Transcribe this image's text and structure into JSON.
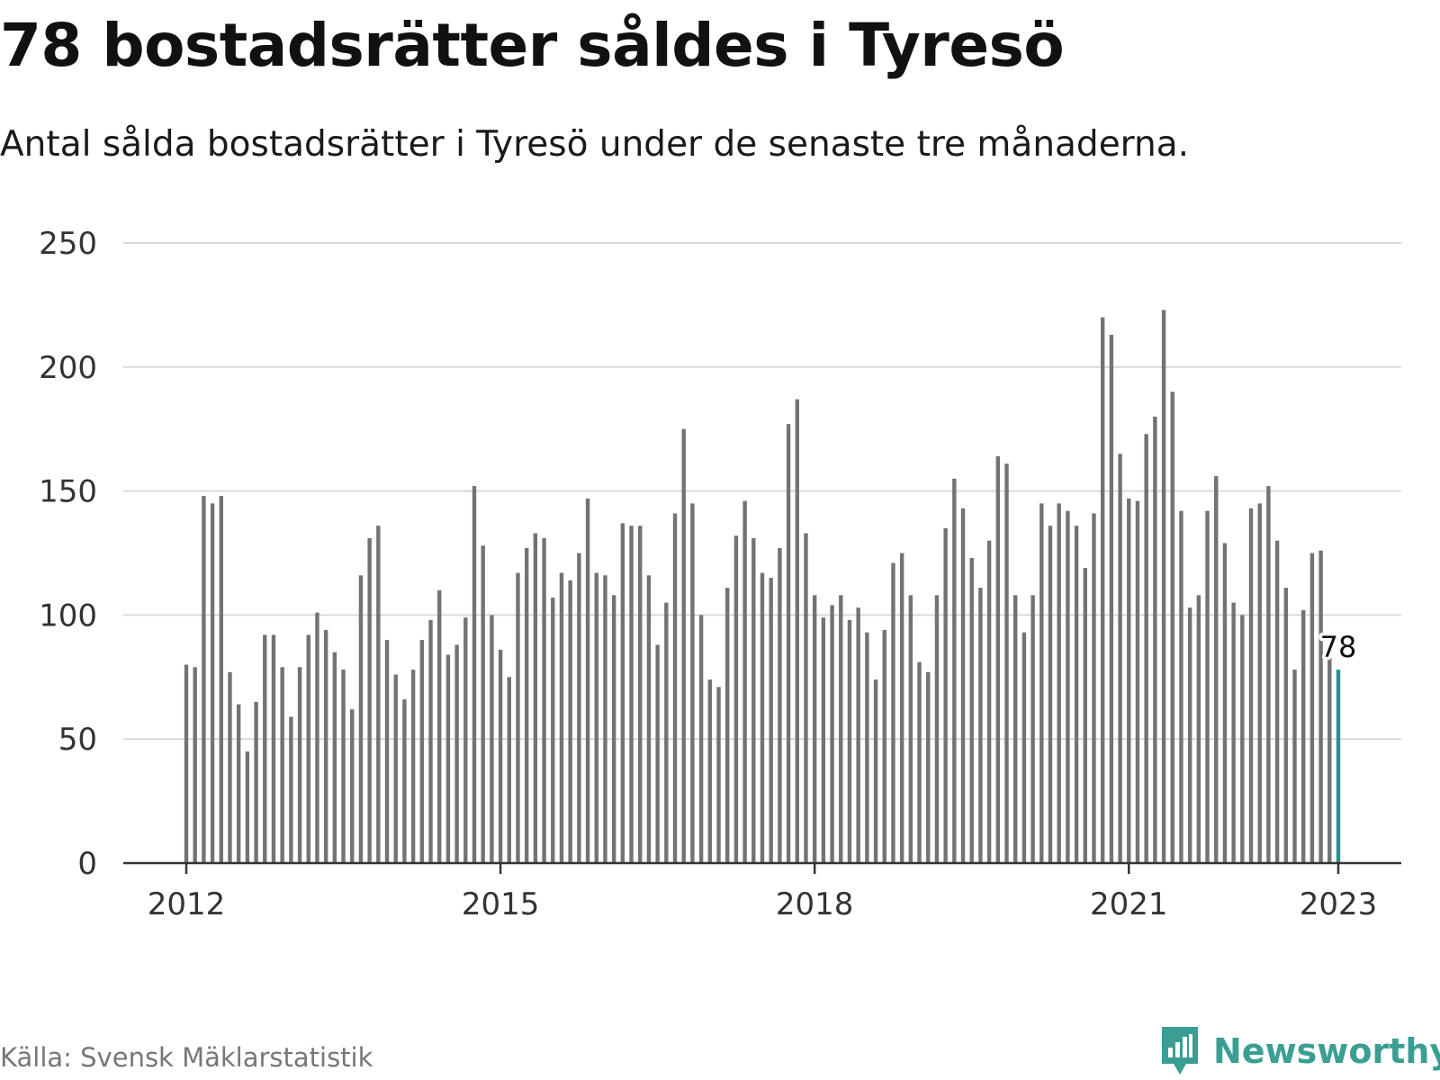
{
  "header": {
    "title": "78 bostadsrätter såldes i Tyresö",
    "subtitle": "Antal sålda bostadsrätter i Tyresö under de senaste tre månaderna."
  },
  "footer": {
    "source": "Källa: Svensk Mäklarstatistik",
    "brand": "Newsworthy",
    "brand_icon": "bar-chart-logo-icon"
  },
  "colors": {
    "bar": "#737373",
    "highlight": "#1a9a8e",
    "grid": "#d9d9d9",
    "axis": "#333333",
    "brand": "#3a9e93"
  },
  "chart_data": {
    "type": "bar",
    "title": "78 bostadsrätter såldes i Tyresö",
    "subtitle": "Antal sålda bostadsrätter i Tyresö under de senaste tre månaderna.",
    "xlabel": "",
    "ylabel": "",
    "ylim": [
      0,
      250
    ],
    "yticks": [
      0,
      50,
      100,
      150,
      200,
      250
    ],
    "xticks": [
      "2012",
      "2015",
      "2018",
      "2021",
      "2023"
    ],
    "grid": true,
    "legend": "none",
    "start": "2012-01",
    "frequency": "monthly",
    "values": [
      80,
      79,
      148,
      145,
      148,
      77,
      64,
      45,
      65,
      92,
      92,
      79,
      59,
      79,
      92,
      101,
      94,
      85,
      78,
      62,
      116,
      131,
      136,
      90,
      76,
      66,
      78,
      90,
      98,
      110,
      84,
      88,
      99,
      152,
      128,
      100,
      86,
      75,
      117,
      127,
      133,
      131,
      107,
      117,
      114,
      125,
      147,
      117,
      116,
      108,
      137,
      136,
      136,
      116,
      88,
      105,
      141,
      175,
      145,
      100,
      74,
      71,
      111,
      132,
      146,
      131,
      117,
      115,
      127,
      177,
      187,
      133,
      108,
      99,
      104,
      108,
      98,
      103,
      93,
      74,
      94,
      121,
      125,
      108,
      81,
      77,
      108,
      135,
      155,
      143,
      123,
      111,
      130,
      164,
      161,
      108,
      93,
      108,
      145,
      136,
      145,
      142,
      136,
      119,
      141,
      220,
      213,
      165,
      147,
      146,
      173,
      180,
      223,
      190,
      142,
      103,
      108,
      142,
      156,
      129,
      105,
      100,
      143,
      145,
      152,
      130,
      111,
      78,
      102,
      125,
      126,
      86,
      78
    ],
    "highlight": {
      "index": 132,
      "label": "78"
    }
  }
}
